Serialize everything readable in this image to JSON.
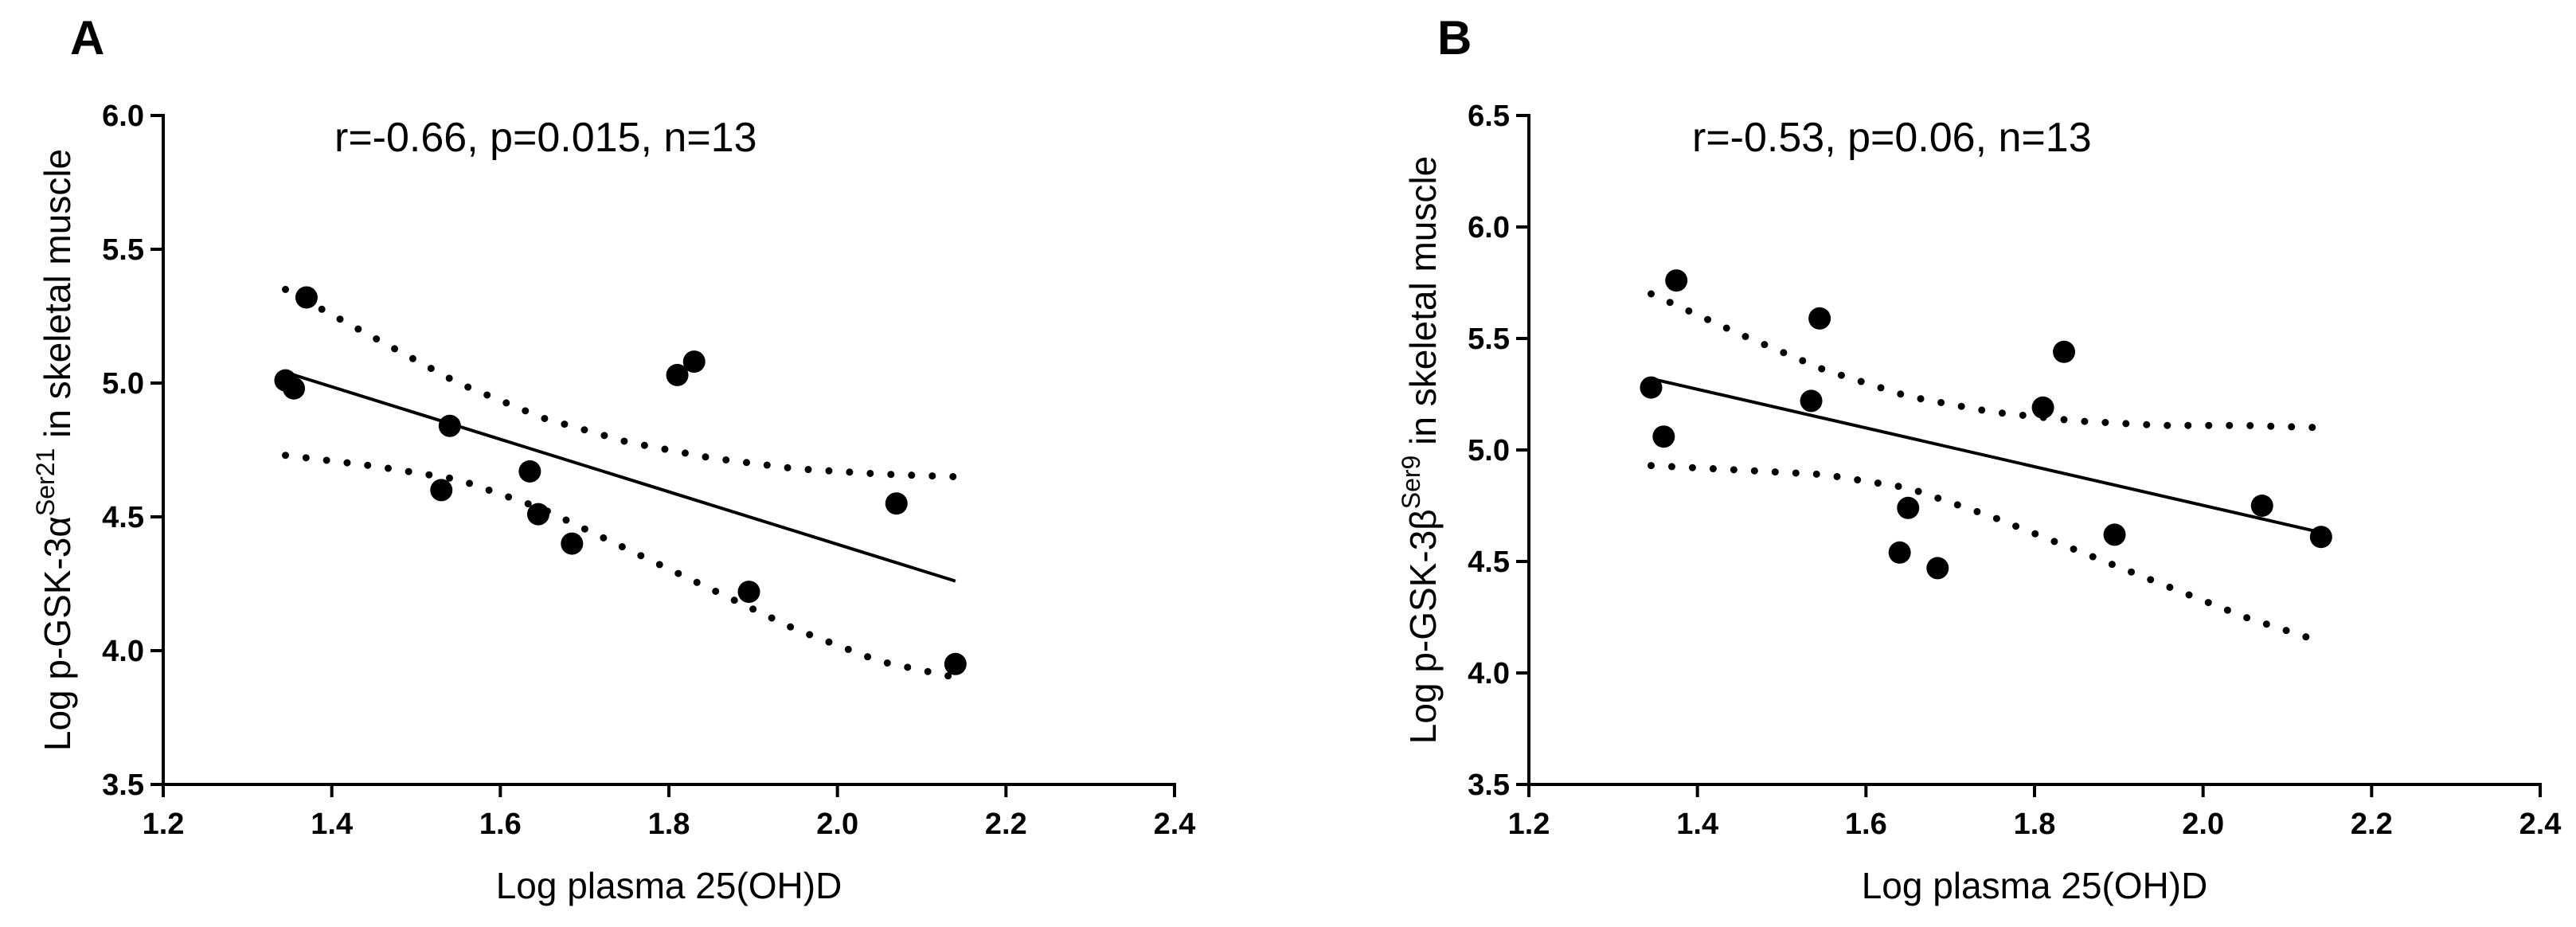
{
  "chart_data": [
    {
      "type": "scatter",
      "panel_label": "A",
      "annotation": "r=-0.66, p=0.015, n=13",
      "xlabel": "Log plasma 25(OH)D",
      "ylabel_main": "Log p-GSK-3α",
      "ylabel_sup": "Ser21",
      "ylabel_tail": " in skeletal muscle",
      "xlim": [
        1.2,
        2.4
      ],
      "ylim": [
        3.5,
        6.0
      ],
      "xticks": [
        1.2,
        1.4,
        1.6,
        1.8,
        2.0,
        2.2,
        2.4
      ],
      "xtick_labels": [
        "1.2",
        "1.4",
        "1.6",
        "1.8",
        "2.0",
        "2.2",
        "2.4"
      ],
      "yticks": [
        3.5,
        4.0,
        4.5,
        5.0,
        5.5,
        6.0
      ],
      "ytick_labels": [
        "3.5",
        "4.0",
        "4.5",
        "5.0",
        "5.5",
        "6.0"
      ],
      "points": [
        {
          "x": 1.345,
          "y": 5.01
        },
        {
          "x": 1.355,
          "y": 4.98
        },
        {
          "x": 1.37,
          "y": 5.32
        },
        {
          "x": 1.53,
          "y": 4.6
        },
        {
          "x": 1.54,
          "y": 4.84
        },
        {
          "x": 1.635,
          "y": 4.67
        },
        {
          "x": 1.645,
          "y": 4.51
        },
        {
          "x": 1.685,
          "y": 4.4
        },
        {
          "x": 1.81,
          "y": 5.03
        },
        {
          "x": 1.83,
          "y": 5.08
        },
        {
          "x": 1.895,
          "y": 4.22
        },
        {
          "x": 2.07,
          "y": 4.55
        },
        {
          "x": 2.14,
          "y": 3.95
        }
      ],
      "fit": {
        "x": [
          1.345,
          2.14
        ],
        "y": [
          5.04,
          4.26
        ]
      },
      "ci_upper": {
        "x": [
          1.345,
          1.45,
          1.55,
          1.65,
          1.75,
          1.85,
          1.95,
          2.05,
          2.14
        ],
        "y": [
          5.35,
          5.17,
          5.0,
          4.87,
          4.78,
          4.72,
          4.68,
          4.66,
          4.65
        ]
      },
      "ci_lower": {
        "x": [
          1.345,
          1.45,
          1.55,
          1.65,
          1.75,
          1.85,
          1.95,
          2.05,
          2.14
        ],
        "y": [
          4.73,
          4.69,
          4.64,
          4.53,
          4.38,
          4.23,
          4.08,
          3.96,
          3.9
        ]
      }
    },
    {
      "type": "scatter",
      "panel_label": "B",
      "annotation": "r=-0.53, p=0.06, n=13",
      "xlabel": "Log plasma 25(OH)D",
      "ylabel_main": "Log p-GSK-3β",
      "ylabel_sup": "Ser9",
      "ylabel_tail": " in skeletal muscle",
      "xlim": [
        1.2,
        2.4
      ],
      "ylim": [
        3.5,
        6.5
      ],
      "xticks": [
        1.2,
        1.4,
        1.6,
        1.8,
        2.0,
        2.2,
        2.4
      ],
      "xtick_labels": [
        "1.2",
        "1.4",
        "1.6",
        "1.8",
        "2.0",
        "2.2",
        "2.4"
      ],
      "yticks": [
        3.5,
        4.0,
        4.5,
        5.0,
        5.5,
        6.0,
        6.5
      ],
      "ytick_labels": [
        "3.5",
        "4.0",
        "4.5",
        "5.0",
        "5.5",
        "6.0",
        "6.5"
      ],
      "points": [
        {
          "x": 1.345,
          "y": 5.28
        },
        {
          "x": 1.36,
          "y": 5.06
        },
        {
          "x": 1.375,
          "y": 5.76
        },
        {
          "x": 1.535,
          "y": 5.22
        },
        {
          "x": 1.545,
          "y": 5.59
        },
        {
          "x": 1.64,
          "y": 4.54
        },
        {
          "x": 1.65,
          "y": 4.74
        },
        {
          "x": 1.685,
          "y": 4.47
        },
        {
          "x": 1.81,
          "y": 5.19
        },
        {
          "x": 1.835,
          "y": 5.44
        },
        {
          "x": 1.895,
          "y": 4.62
        },
        {
          "x": 2.07,
          "y": 4.75
        },
        {
          "x": 2.14,
          "y": 4.61
        }
      ],
      "fit": {
        "x": [
          1.345,
          2.14
        ],
        "y": [
          5.32,
          4.63
        ]
      },
      "ci_upper": {
        "x": [
          1.345,
          1.45,
          1.55,
          1.65,
          1.75,
          1.85,
          1.95,
          2.05,
          2.14
        ],
        "y": [
          5.7,
          5.52,
          5.36,
          5.24,
          5.17,
          5.13,
          5.11,
          5.11,
          5.1
        ]
      },
      "ci_lower": {
        "x": [
          1.345,
          1.45,
          1.55,
          1.65,
          1.75,
          1.85,
          1.95,
          2.05,
          2.14
        ],
        "y": [
          4.93,
          4.91,
          4.89,
          4.83,
          4.7,
          4.55,
          4.4,
          4.25,
          4.14
        ]
      }
    }
  ]
}
